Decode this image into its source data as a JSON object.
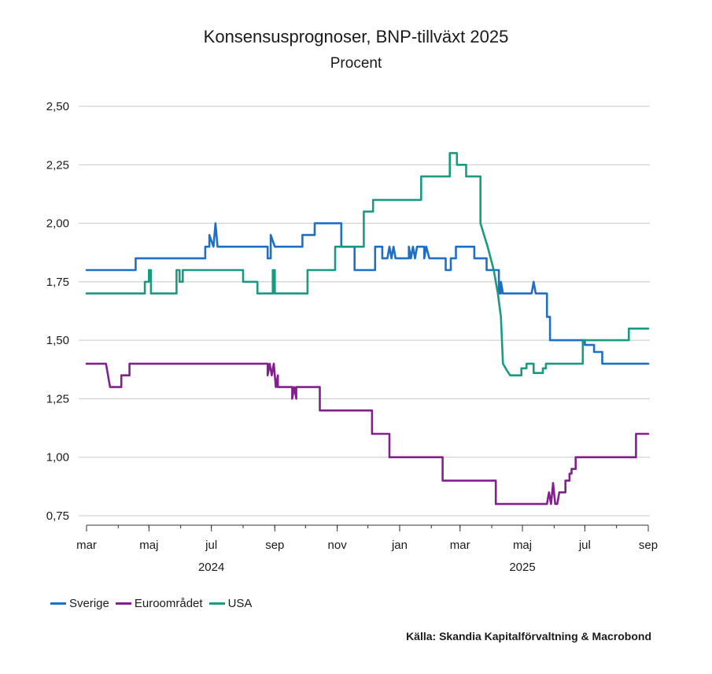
{
  "chart_data": {
    "type": "line",
    "title": "Konsensusprognoser, BNP-tillväxt 2025",
    "subtitle": "Procent",
    "ylim": [
      0.75,
      2.5
    ],
    "yticks": [
      0.75,
      1.0,
      1.25,
      1.5,
      1.75,
      2.0,
      2.25,
      2.5
    ],
    "ytick_labels": [
      "0,75",
      "1,00",
      "1,25",
      "1,50",
      "1,75",
      "2,00",
      "2,25",
      "2,50"
    ],
    "xlim": [
      "2024-03-01",
      "2025-09-01"
    ],
    "xticks": [
      "2024-03-01",
      "2024-05-01",
      "2024-07-01",
      "2024-09-01",
      "2024-11-01",
      "2025-01-01",
      "2025-03-01",
      "2025-05-01",
      "2025-07-01",
      "2025-09-01"
    ],
    "xtick_labels": [
      "mar",
      "maj",
      "jul",
      "sep",
      "nov",
      "jan",
      "mar",
      "maj",
      "jul",
      "sep"
    ],
    "year_labels": [
      {
        "label": "2024",
        "date": "2024-07-01"
      },
      {
        "label": "2025",
        "date": "2025-05-01"
      }
    ],
    "grid": "horizontal",
    "legend_position": "bottom-left",
    "series": [
      {
        "name": "Sverige",
        "color": "#1f6fc5",
        "x": [
          "2024-03-01",
          "2024-04-18",
          "2024-04-18",
          "2024-06-25",
          "2024-06-25",
          "2024-06-29",
          "2024-06-29",
          "2024-07-03",
          "2024-07-05",
          "2024-07-07",
          "2024-07-07",
          "2024-08-25",
          "2024-08-25",
          "2024-08-28",
          "2024-08-28",
          "2024-09-01",
          "2024-09-01",
          "2024-09-28",
          "2024-09-28",
          "2024-10-10",
          "2024-10-10",
          "2024-11-05",
          "2024-11-05",
          "2024-11-18",
          "2024-11-18",
          "2024-12-08",
          "2024-12-08",
          "2024-12-15",
          "2024-12-15",
          "2024-12-20",
          "2024-12-22",
          "2024-12-24",
          "2024-12-26",
          "2024-12-28",
          "2025-01-10",
          "2025-01-10",
          "2025-01-12",
          "2025-01-14",
          "2025-01-16",
          "2025-01-18",
          "2025-01-25",
          "2025-01-25",
          "2025-01-27",
          "2025-01-30",
          "2025-01-30",
          "2025-02-15",
          "2025-02-15",
          "2025-02-20",
          "2025-02-20",
          "2025-02-25",
          "2025-02-25",
          "2025-03-15",
          "2025-03-15",
          "2025-03-27",
          "2025-03-27",
          "2025-04-08",
          "2025-04-08",
          "2025-04-10",
          "2025-04-10",
          "2025-04-12",
          "2025-04-12",
          "2025-04-14",
          "2025-04-14",
          "2025-05-10",
          "2025-05-12",
          "2025-05-14",
          "2025-05-14",
          "2025-05-25",
          "2025-05-25",
          "2025-05-28",
          "2025-05-28",
          "2025-06-01",
          "2025-06-01",
          "2025-07-01",
          "2025-07-01",
          "2025-07-10",
          "2025-07-10",
          "2025-07-18",
          "2025-07-18",
          "2025-07-29",
          "2025-07-29",
          "2025-09-01"
        ],
        "y": [
          1.8,
          1.8,
          1.85,
          1.85,
          1.9,
          1.9,
          1.95,
          1.9,
          2.0,
          1.9,
          1.9,
          1.9,
          1.85,
          1.85,
          1.95,
          1.9,
          1.9,
          1.9,
          1.95,
          1.95,
          2.0,
          2.0,
          1.9,
          1.9,
          1.8,
          1.8,
          1.9,
          1.9,
          1.85,
          1.85,
          1.9,
          1.85,
          1.9,
          1.85,
          1.85,
          1.9,
          1.85,
          1.9,
          1.85,
          1.9,
          1.9,
          1.85,
          1.9,
          1.85,
          1.85,
          1.85,
          1.8,
          1.8,
          1.85,
          1.85,
          1.9,
          1.9,
          1.85,
          1.85,
          1.8,
          1.8,
          1.7,
          1.7,
          1.75,
          1.7,
          1.7,
          1.7,
          1.7,
          1.7,
          1.75,
          1.7,
          1.7,
          1.7,
          1.6,
          1.6,
          1.5,
          1.5,
          1.5,
          1.5,
          1.48,
          1.48,
          1.45,
          1.45,
          1.4,
          1.4,
          1.4,
          1.4
        ]
      },
      {
        "name": "Euroområdet",
        "color": "#82208e",
        "x": [
          "2024-03-01",
          "2024-03-20",
          "2024-03-22",
          "2024-03-24",
          "2024-04-04",
          "2024-04-04",
          "2024-04-12",
          "2024-04-12",
          "2024-08-25",
          "2024-08-25",
          "2024-08-27",
          "2024-08-29",
          "2024-08-31",
          "2024-09-02",
          "2024-09-04",
          "2024-09-04",
          "2024-09-18",
          "2024-09-18",
          "2024-09-20",
          "2024-09-22",
          "2024-09-22",
          "2024-10-15",
          "2024-10-15",
          "2024-12-05",
          "2024-12-05",
          "2024-12-22",
          "2024-12-22",
          "2025-02-12",
          "2025-02-12",
          "2025-04-05",
          "2025-04-05",
          "2025-05-25",
          "2025-05-27",
          "2025-05-29",
          "2025-05-31",
          "2025-06-02",
          "2025-06-04",
          "2025-06-06",
          "2025-06-06",
          "2025-06-12",
          "2025-06-12",
          "2025-06-16",
          "2025-06-16",
          "2025-06-18",
          "2025-06-18",
          "2025-06-22",
          "2025-06-22",
          "2025-08-20",
          "2025-08-20",
          "2025-09-01"
        ],
        "y": [
          1.4,
          1.4,
          1.35,
          1.3,
          1.3,
          1.35,
          1.35,
          1.4,
          1.4,
          1.35,
          1.4,
          1.35,
          1.4,
          1.3,
          1.35,
          1.3,
          1.3,
          1.25,
          1.3,
          1.25,
          1.3,
          1.3,
          1.2,
          1.2,
          1.1,
          1.1,
          1.0,
          1.0,
          0.9,
          0.9,
          0.8,
          0.8,
          0.85,
          0.8,
          0.89,
          0.8,
          0.8,
          0.85,
          0.85,
          0.85,
          0.9,
          0.9,
          0.93,
          0.93,
          0.95,
          0.95,
          1.0,
          1.0,
          1.1,
          1.1
        ]
      },
      {
        "name": "USA",
        "color": "#1a9a80",
        "x": [
          "2024-03-01",
          "2024-04-27",
          "2024-04-27",
          "2024-05-01",
          "2024-05-01",
          "2024-05-03",
          "2024-05-03",
          "2024-05-28",
          "2024-05-28",
          "2024-05-31",
          "2024-05-31",
          "2024-06-03",
          "2024-06-03",
          "2024-08-01",
          "2024-08-01",
          "2024-08-15",
          "2024-08-15",
          "2024-08-30",
          "2024-08-30",
          "2024-09-01",
          "2024-09-01",
          "2024-10-03",
          "2024-10-03",
          "2024-10-30",
          "2024-10-30",
          "2024-11-27",
          "2024-11-27",
          "2024-12-06",
          "2024-12-06",
          "2025-01-22",
          "2025-01-22",
          "2025-02-19",
          "2025-02-19",
          "2025-02-26",
          "2025-02-26",
          "2025-03-07",
          "2025-03-07",
          "2025-03-21",
          "2025-03-21",
          "2025-03-28",
          "2025-04-03",
          "2025-04-07",
          "2025-04-10",
          "2025-04-12",
          "2025-04-16",
          "2025-04-19",
          "2025-04-27",
          "2025-04-30",
          "2025-04-30",
          "2025-05-05",
          "2025-05-05",
          "2025-05-12",
          "2025-05-12",
          "2025-05-21",
          "2025-05-21",
          "2025-05-24",
          "2025-05-24",
          "2025-06-06",
          "2025-06-06",
          "2025-06-29",
          "2025-06-29",
          "2025-08-13",
          "2025-08-13",
          "2025-08-18",
          "2025-08-18",
          "2025-09-01"
        ],
        "y": [
          1.7,
          1.7,
          1.75,
          1.75,
          1.8,
          1.8,
          1.7,
          1.7,
          1.8,
          1.8,
          1.75,
          1.75,
          1.8,
          1.8,
          1.75,
          1.75,
          1.7,
          1.7,
          1.8,
          1.8,
          1.7,
          1.7,
          1.8,
          1.8,
          1.9,
          1.9,
          2.05,
          2.05,
          2.1,
          2.1,
          2.2,
          2.2,
          2.3,
          2.3,
          2.25,
          2.25,
          2.2,
          2.2,
          2.0,
          1.9,
          1.8,
          1.7,
          1.6,
          1.4,
          1.37,
          1.35,
          1.35,
          1.35,
          1.38,
          1.38,
          1.4,
          1.4,
          1.36,
          1.36,
          1.38,
          1.38,
          1.4,
          1.4,
          1.4,
          1.4,
          1.5,
          1.5,
          1.55,
          1.55,
          1.55,
          1.55
        ]
      }
    ]
  },
  "source": "Källa: Skandia Kapitalförvaltning & Macrobond"
}
